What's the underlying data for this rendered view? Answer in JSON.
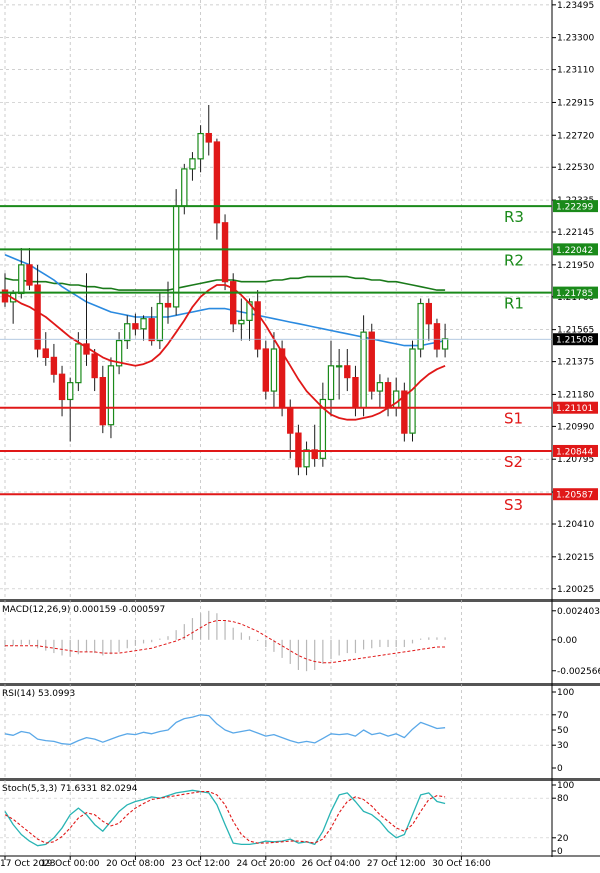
{
  "chart_data": [
    {
      "type": "candlestick",
      "ylim": [
        1.2,
        1.235
      ],
      "yticks": [
        "1.23495",
        "1.23300",
        "1.23110",
        "1.22915",
        "1.22720",
        "1.22530",
        "1.22335",
        "1.22145",
        "1.21950",
        "1.21760",
        "1.21565",
        "1.21375",
        "1.21180",
        "1.20990",
        "1.20795",
        "1.20600",
        "1.20410",
        "1.20215",
        "1.20025"
      ],
      "xticks": [
        {
          "i": 0,
          "label": "17 Oct 2023"
        },
        {
          "i": 8,
          "label": "19 Oct 00:00"
        },
        {
          "i": 16,
          "label": "20 Oct 08:00"
        },
        {
          "i": 24,
          "label": "23 Oct 12:00"
        },
        {
          "i": 32,
          "label": "24 Oct 20:00"
        },
        {
          "i": 40,
          "label": "26 Oct 04:00"
        },
        {
          "i": 48,
          "label": "27 Oct 12:00"
        },
        {
          "i": 56,
          "label": "30 Oct 16:00"
        }
      ],
      "candles": [
        [
          1.218,
          1.219,
          1.217,
          1.2173
        ],
        [
          1.2173,
          1.218,
          1.216,
          1.2178
        ],
        [
          1.2178,
          1.2205,
          1.2175,
          1.2195
        ],
        [
          1.2195,
          1.2205,
          1.218,
          1.2183
        ],
        [
          1.2183,
          1.2195,
          1.214,
          1.2145
        ],
        [
          1.2145,
          1.2155,
          1.2135,
          1.214
        ],
        [
          1.214,
          1.2148,
          1.2125,
          1.213
        ],
        [
          1.213,
          1.2135,
          1.2105,
          1.2115
        ],
        [
          1.2115,
          1.2128,
          1.209,
          1.2125
        ],
        [
          1.2125,
          1.2155,
          1.212,
          1.2148
        ],
        [
          1.2148,
          1.219,
          1.2135,
          1.2142
        ],
        [
          1.2142,
          1.2145,
          1.212,
          1.2128
        ],
        [
          1.2128,
          1.2135,
          1.2095,
          1.21
        ],
        [
          1.21,
          1.214,
          1.2092,
          1.2135
        ],
        [
          1.2135,
          1.2155,
          1.213,
          1.215
        ],
        [
          1.215,
          1.2165,
          1.2145,
          1.216
        ],
        [
          1.216,
          1.2166,
          1.2153,
          1.2157
        ],
        [
          1.2157,
          1.2165,
          1.215,
          1.2163
        ],
        [
          1.2163,
          1.217,
          1.2147,
          1.215
        ],
        [
          1.215,
          1.2178,
          1.2145,
          1.2172
        ],
        [
          1.2172,
          1.2185,
          1.216,
          1.217
        ],
        [
          1.217,
          1.224,
          1.2165,
          1.223
        ],
        [
          1.223,
          1.2255,
          1.2225,
          1.2252
        ],
        [
          1.2252,
          1.2262,
          1.2245,
          1.2258
        ],
        [
          1.2258,
          1.2278,
          1.225,
          1.2273
        ],
        [
          1.2273,
          1.229,
          1.226,
          1.2268
        ],
        [
          1.2268,
          1.227,
          1.221,
          1.222
        ],
        [
          1.222,
          1.2225,
          1.218,
          1.2185
        ],
        [
          1.2185,
          1.219,
          1.2155,
          1.216
        ],
        [
          1.216,
          1.2175,
          1.215,
          1.2162
        ],
        [
          1.2162,
          1.2175,
          1.215,
          1.2173
        ],
        [
          1.2173,
          1.218,
          1.214,
          1.2145
        ],
        [
          1.2145,
          1.215,
          1.2115,
          1.212
        ],
        [
          1.212,
          1.2155,
          1.211,
          1.2145
        ],
        [
          1.2145,
          1.215,
          1.2105,
          1.211
        ],
        [
          1.211,
          1.2115,
          1.208,
          1.2095
        ],
        [
          1.2095,
          1.21,
          1.207,
          1.2075
        ],
        [
          1.2075,
          1.209,
          1.207,
          1.2085
        ],
        [
          1.2085,
          1.21,
          1.2075,
          1.208
        ],
        [
          1.208,
          1.2125,
          1.2075,
          1.2115
        ],
        [
          1.2115,
          1.215,
          1.2105,
          1.2135
        ],
        [
          1.2135,
          1.2145,
          1.2115,
          1.2135
        ],
        [
          1.2135,
          1.2145,
          1.212,
          1.2128
        ],
        [
          1.2128,
          1.2135,
          1.2105,
          1.211
        ],
        [
          1.211,
          1.2165,
          1.2105,
          1.2155
        ],
        [
          1.2155,
          1.216,
          1.2115,
          1.212
        ],
        [
          1.212,
          1.213,
          1.211,
          1.2125
        ],
        [
          1.2125,
          1.2128,
          1.2105,
          1.211
        ],
        [
          1.211,
          1.2128,
          1.2105,
          1.212
        ],
        [
          1.212,
          1.2125,
          1.209,
          1.2095
        ],
        [
          1.2095,
          1.215,
          1.209,
          1.2145
        ],
        [
          1.2145,
          1.2175,
          1.214,
          1.2172
        ],
        [
          1.2172,
          1.2175,
          1.215,
          1.216
        ],
        [
          1.216,
          1.2163,
          1.214,
          1.2145
        ],
        [
          1.2145,
          1.216,
          1.214,
          1.2151
        ]
      ],
      "sma_blue": [
        1.2201,
        1.2199,
        1.2197,
        1.2195,
        1.2192,
        1.2189,
        1.2186,
        1.2182,
        1.2179,
        1.2176,
        1.2173,
        1.2171,
        1.2169,
        1.2167,
        1.2166,
        1.2165,
        1.2164,
        1.2164,
        1.2164,
        1.2164,
        1.2164,
        1.2165,
        1.2166,
        1.2167,
        1.2168,
        1.2169,
        1.2169,
        1.2169,
        1.2168,
        1.2167,
        1.2166,
        1.2165,
        1.2164,
        1.2163,
        1.2162,
        1.2161,
        1.216,
        1.2159,
        1.2158,
        1.2157,
        1.2156,
        1.2155,
        1.2154,
        1.2153,
        1.2152,
        1.2151,
        1.215,
        1.2149,
        1.2148,
        1.2147,
        1.2147,
        1.2147,
        1.2148,
        1.2149,
        1.215
      ],
      "sma_green": [
        1.2187,
        1.2186,
        1.2186,
        1.2185,
        1.2185,
        1.2185,
        1.2184,
        1.2184,
        1.2183,
        1.2183,
        1.2182,
        1.2182,
        1.2181,
        1.2181,
        1.218,
        1.218,
        1.218,
        1.218,
        1.218,
        1.218,
        1.218,
        1.2181,
        1.2182,
        1.2183,
        1.2184,
        1.2185,
        1.2186,
        1.2186,
        1.2186,
        1.2185,
        1.2185,
        1.2185,
        1.2185,
        1.2186,
        1.2186,
        1.2187,
        1.2187,
        1.2188,
        1.2188,
        1.2188,
        1.2188,
        1.2188,
        1.2188,
        1.2187,
        1.2187,
        1.2186,
        1.2186,
        1.2185,
        1.2185,
        1.2184,
        1.2183,
        1.2182,
        1.2181,
        1.218,
        1.218
      ],
      "sma_red": [
        1.2178,
        1.2175,
        1.2172,
        1.217,
        1.2167,
        1.2164,
        1.216,
        1.2156,
        1.2152,
        1.2149,
        1.2146,
        1.2143,
        1.214,
        1.2138,
        1.2137,
        1.2136,
        1.2135,
        1.2136,
        1.2138,
        1.2142,
        1.2148,
        1.2155,
        1.2162,
        1.217,
        1.2176,
        1.218,
        1.2183,
        1.2183,
        1.2181,
        1.2177,
        1.2172,
        1.2166,
        1.2159,
        1.2151,
        1.2143,
        1.2135,
        1.2127,
        1.212,
        1.2115,
        1.211,
        1.2106,
        1.2104,
        1.2103,
        1.2103,
        1.2104,
        1.2105,
        1.2107,
        1.211,
        1.2113,
        1.2117,
        1.2121,
        1.2126,
        1.213,
        1.2133,
        1.2135
      ],
      "current_price": {
        "value": 1.21508,
        "label": "1.21508"
      },
      "levels": [
        {
          "name": "R3",
          "value": 1.22299,
          "label": "1.22299",
          "color": "#1a8a1a"
        },
        {
          "name": "R2",
          "value": 1.22042,
          "label": "1.22042",
          "color": "#1a8a1a"
        },
        {
          "name": "R1",
          "value": 1.21785,
          "label": "1.21785",
          "color": "#1a8a1a"
        },
        {
          "name": "S1",
          "value": 1.21101,
          "label": "1.21101",
          "color": "#e01818"
        },
        {
          "name": "S2",
          "value": 1.20844,
          "label": "1.20844",
          "color": "#e01818"
        },
        {
          "name": "S3",
          "value": 1.20587,
          "label": "1.20587",
          "color": "#e01818"
        }
      ],
      "colors": {
        "bull": "#1a8a1a",
        "bear": "#e01818",
        "blue_ma": "#2a8ae0",
        "green_ma": "#1a7a1a",
        "red_ma": "#e01818",
        "price_tag": "#000000"
      }
    },
    {
      "type": "macd",
      "label": "MACD(12,26,9) 0.000159 -0.000597",
      "ylim": [
        -0.003,
        0.0028
      ],
      "yticks": [
        "0.002403",
        "0.00",
        "-0.002566"
      ],
      "yticks_values": [
        0.002403,
        0.0,
        -0.002566
      ],
      "hist": [
        -0.0006,
        -0.0005,
        -0.0004,
        -0.0004,
        -0.0007,
        -0.0009,
        -0.0011,
        -0.0013,
        -0.0014,
        -0.0012,
        -0.001,
        -0.0011,
        -0.0013,
        -0.0012,
        -0.001,
        -0.0007,
        -0.0005,
        -0.0003,
        -0.0002,
        0.0001,
        0.0003,
        0.0008,
        0.0013,
        0.0018,
        0.0022,
        0.0024,
        0.0022,
        0.0016,
        0.001,
        0.0006,
        0.0003,
        -0.0001,
        -0.0006,
        -0.001,
        -0.0015,
        -0.002,
        -0.0025,
        -0.0026,
        -0.0025,
        -0.002,
        -0.0016,
        -0.0013,
        -0.0011,
        -0.0011,
        -0.0008,
        -0.0007,
        -0.0006,
        -0.0006,
        -0.0006,
        -0.0006,
        -0.0003,
        0.0001,
        0.0002,
        0.0002,
        0.0002
      ],
      "signal": [
        -0.0005,
        -0.0005,
        -0.0005,
        -0.0005,
        -0.0005,
        -0.0006,
        -0.0007,
        -0.0008,
        -0.0009,
        -0.001,
        -0.001,
        -0.001,
        -0.0011,
        -0.0011,
        -0.0011,
        -0.001,
        -0.0009,
        -0.0008,
        -0.0007,
        -0.0005,
        -0.0003,
        -0.0001,
        0.0002,
        0.0006,
        0.001,
        0.0014,
        0.0016,
        0.0016,
        0.0015,
        0.0013,
        0.001,
        0.0007,
        0.0003,
        -0.0001,
        -0.0005,
        -0.0009,
        -0.0013,
        -0.0016,
        -0.0018,
        -0.0019,
        -0.0019,
        -0.0018,
        -0.0017,
        -0.0016,
        -0.0015,
        -0.0014,
        -0.0013,
        -0.0012,
        -0.0011,
        -0.001,
        -0.0009,
        -0.0008,
        -0.0007,
        -0.0006,
        -0.0006
      ],
      "colors": {
        "hist": "#b8b8b8",
        "signal": "#e01818"
      }
    },
    {
      "type": "line",
      "label": "RSI(14) 53.0993",
      "ylim": [
        0,
        100
      ],
      "yticks": [
        "100",
        "70",
        "50",
        "30",
        "0"
      ],
      "yticks_values": [
        100,
        70,
        50,
        30,
        0
      ],
      "values": [
        45,
        43,
        48,
        46,
        38,
        36,
        35,
        32,
        31,
        36,
        40,
        38,
        34,
        38,
        42,
        45,
        44,
        47,
        45,
        48,
        50,
        60,
        65,
        67,
        70,
        69,
        58,
        50,
        46,
        48,
        50,
        46,
        42,
        44,
        40,
        36,
        33,
        35,
        33,
        39,
        45,
        44,
        45,
        42,
        50,
        44,
        46,
        42,
        45,
        40,
        51,
        60,
        56,
        52,
        53
      ],
      "colors": {
        "line": "#5aa8e8"
      }
    },
    {
      "type": "line",
      "label": "Stoch(5,3,3) 71.6331 82.0294",
      "ylim": [
        0,
        100
      ],
      "yticks": [
        "100",
        "80",
        "20",
        "0"
      ],
      "yticks_values": [
        100,
        80,
        20,
        0
      ],
      "k": [
        60,
        40,
        25,
        15,
        8,
        10,
        20,
        35,
        55,
        65,
        55,
        40,
        30,
        45,
        60,
        70,
        75,
        78,
        82,
        80,
        84,
        88,
        90,
        92,
        90,
        88,
        70,
        40,
        12,
        10,
        10,
        12,
        15,
        14,
        15,
        18,
        12,
        14,
        10,
        30,
        60,
        85,
        88,
        75,
        60,
        55,
        45,
        30,
        20,
        25,
        55,
        85,
        88,
        75,
        72
      ],
      "d": [
        55,
        48,
        38,
        28,
        18,
        12,
        14,
        22,
        35,
        50,
        58,
        55,
        45,
        38,
        42,
        55,
        65,
        72,
        78,
        80,
        82,
        84,
        86,
        88,
        90,
        90,
        85,
        70,
        45,
        25,
        15,
        12,
        12,
        13,
        14,
        15,
        15,
        14,
        12,
        18,
        35,
        58,
        75,
        82,
        78,
        68,
        55,
        45,
        35,
        30,
        40,
        60,
        78,
        84,
        82
      ],
      "colors": {
        "k": "#28b4b4",
        "d": "#e01818"
      }
    }
  ]
}
